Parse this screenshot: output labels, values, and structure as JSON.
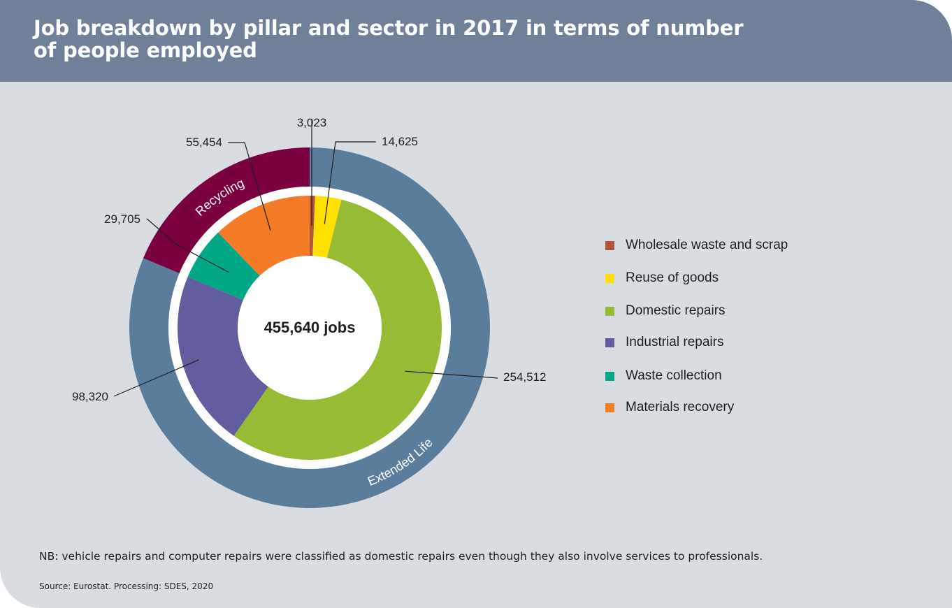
{
  "header": {
    "title_line1": "Job breakdown by pillar and sector in 2017 in terms of number",
    "title_line2": "of people employed"
  },
  "chart_data": {
    "type": "pie",
    "variant": "nested-donut",
    "center_label": "455,640 jobs",
    "total": 455640,
    "sectors": [
      {
        "name": "Wholesale waste and scrap",
        "value": 3023,
        "label": "3,023",
        "color": "#b4553a",
        "pillar": "Extended Life"
      },
      {
        "name": "Reuse of goods",
        "value": 14625,
        "label": "14,625",
        "color": "#ffe000",
        "pillar": "Extended Life"
      },
      {
        "name": "Domestic repairs",
        "value": 254512,
        "label": "254,512",
        "color": "#97bb34",
        "pillar": "Extended Life"
      },
      {
        "name": "Industrial repairs",
        "value": 98320,
        "label": "98,320",
        "color": "#625d9e",
        "pillar": "Extended Life"
      },
      {
        "name": "Waste collection",
        "value": 29705,
        "label": "29,705",
        "color": "#00a885",
        "pillar": "Recycling"
      },
      {
        "name": "Materials recovery",
        "value": 55454,
        "label": "55,454",
        "color": "#f47b28",
        "pillar": "Recycling"
      }
    ],
    "pillars": [
      {
        "name": "Extended Life",
        "value": 370480,
        "color": "#5a7d9c"
      },
      {
        "name": "Recycling",
        "value": 85159,
        "color": "#7a0040"
      }
    ],
    "legend_position": "right"
  },
  "legend": {
    "items": [
      {
        "label": "Wholesale waste and scrap",
        "color": "#b4553a"
      },
      {
        "label": "Reuse of goods",
        "color": "#ffe000"
      },
      {
        "label": "Domestic repairs",
        "color": "#97bb34"
      },
      {
        "label": "Industrial repairs",
        "color": "#625d9e"
      },
      {
        "label": "Waste collection",
        "color": "#00a885"
      },
      {
        "label": "Materials recovery",
        "color": "#f47b28"
      }
    ]
  },
  "footer": {
    "note": "NB: vehicle repairs and computer repairs were classified as domestic repairs even though they also involve services to professionals.",
    "source": "Source: Eurostat. Processing: SDES, 2020"
  }
}
